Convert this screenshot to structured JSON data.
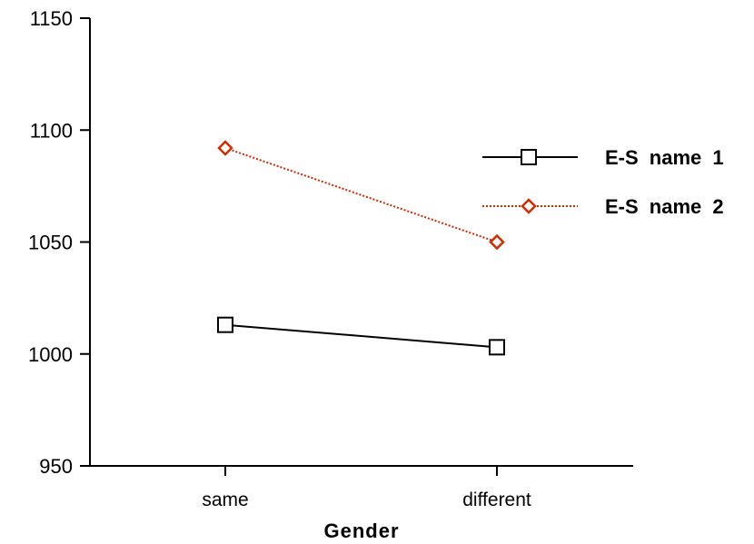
{
  "chart_data": {
    "type": "line",
    "categories": [
      "same",
      "different"
    ],
    "xlabel": "Gender",
    "ylabel": "",
    "ylim": [
      950,
      1150
    ],
    "yticks": [
      950,
      1000,
      1050,
      1100,
      1150
    ],
    "grid": false,
    "legend_position": "right",
    "series": [
      {
        "name": "E-S  name  1",
        "values": [
          1013,
          1003
        ],
        "color": "#000000",
        "marker": "square",
        "line": "solid"
      },
      {
        "name": "E-S  name  2",
        "values": [
          1092,
          1050
        ],
        "color": "#d42a00",
        "marker": "diamond",
        "line": "dotted"
      }
    ]
  }
}
